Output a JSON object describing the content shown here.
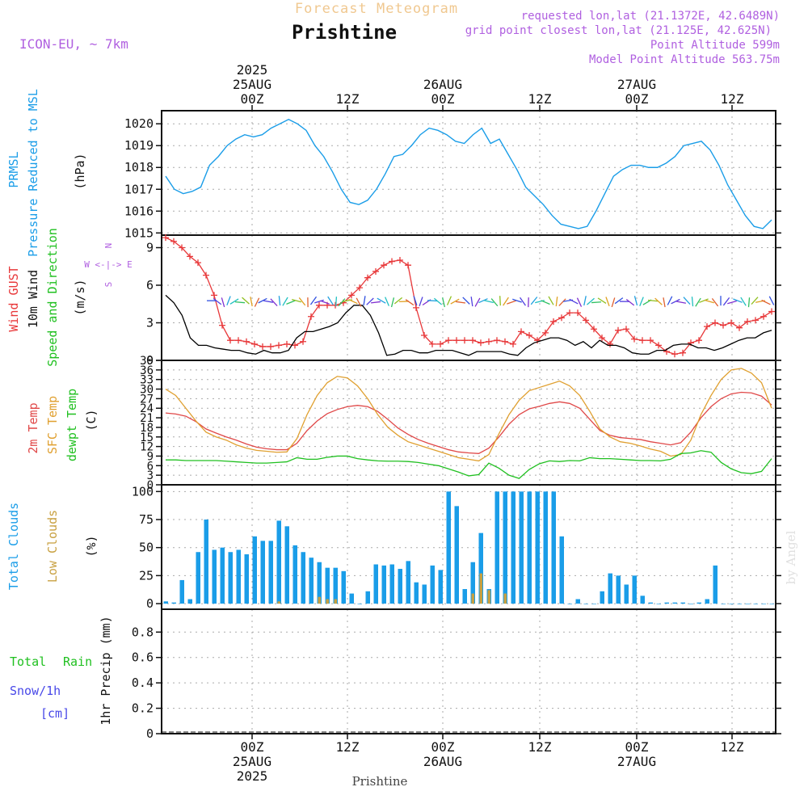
{
  "header": {
    "super_title": "Forecast Meteogram",
    "location": "Prishtine",
    "model": "ICON-EU, ~ 7km",
    "requested": "requested lon,lat (21.1372E, 42.6489N)",
    "grid_point": "grid point closest lon,lat (21.125E, 42.625N)",
    "point_altitude": "Point Altitude 599m",
    "model_altitude": "Model Point Altitude 563.75m",
    "footer_location": "Prishtine",
    "credit": "by Angel"
  },
  "time_axis": {
    "labels_top": [
      {
        "lines": [
          "2025",
          "25AUG",
          "00Z"
        ]
      },
      {
        "lines": [
          "",
          "",
          "12Z"
        ]
      },
      {
        "lines": [
          "",
          "26AUG",
          "00Z"
        ]
      },
      {
        "lines": [
          "",
          "",
          "12Z"
        ]
      },
      {
        "lines": [
          "",
          "27AUG",
          "00Z"
        ]
      },
      {
        "lines": [
          "",
          "",
          "12Z"
        ]
      }
    ],
    "labels_bottom": [
      {
        "lines": [
          "00Z",
          "25AUG",
          "2025"
        ]
      },
      {
        "lines": [
          "12Z",
          "",
          ""
        ]
      },
      {
        "lines": [
          "00Z",
          "26AUG",
          ""
        ]
      },
      {
        "lines": [
          "12Z",
          "",
          ""
        ]
      },
      {
        "lines": [
          "00Z",
          "27AUG",
          ""
        ]
      },
      {
        "lines": [
          "12Z",
          "",
          ""
        ]
      }
    ]
  },
  "panels": {
    "pressure": {
      "labels": [
        "PRMSL",
        "Pressure Reduced to MSL",
        "(hPa)"
      ]
    },
    "wind": {
      "labels": [
        "Wind GUST",
        "10m Wind",
        "Speed and Direction",
        "(m/s)"
      ],
      "compass": [
        "N",
        "W <-|-> E",
        "S"
      ]
    },
    "temp": {
      "labels": [
        "2m Temp",
        "SFC Temp",
        "dewpt Temp",
        "(C)"
      ]
    },
    "clouds": {
      "labels": [
        "Total Clouds",
        "Low Clouds",
        "(%)"
      ]
    },
    "precip": {
      "labels": [
        "Total",
        "Rain",
        "Snow/1h",
        "[cm]",
        "1hr Precip (mm)"
      ]
    }
  },
  "colors": {
    "pressure": "#1a9de8",
    "gust": "#e8383a",
    "wind": "#000000",
    "temp2m": "#e04848",
    "sfc": "#e0a030",
    "dewpt": "#20c020",
    "total_clouds": "#1a9de8",
    "low_clouds": "#c8a040",
    "header_purple": "#b060e0",
    "title_gold": "#f0c890",
    "rain_green": "#20c020",
    "snow_blue": "#4848e8"
  },
  "chart_data": [
    {
      "type": "line",
      "title": "PRMSL Pressure Reduced to MSL",
      "ylabel": "(hPa)",
      "x_unit": "hours from 24AUG 15Z (3 hourly)",
      "ylim": [
        1014.9,
        1020.6
      ],
      "yticks": [
        1015,
        1016,
        1017,
        1018,
        1019,
        1020
      ],
      "series": [
        {
          "name": "PRMSL",
          "values": [
            1017.6,
            1017.0,
            1016.8,
            1016.9,
            1017.1,
            1018.1,
            1018.5,
            1019.0,
            1019.3,
            1019.5,
            1019.4,
            1019.5,
            1019.8,
            1020.0,
            1020.2,
            1020.0,
            1019.7,
            1019.0,
            1018.5,
            1017.8,
            1017.0,
            1016.4,
            1016.3,
            1016.5,
            1017.0,
            1017.7,
            1018.5,
            1018.6,
            1019.0,
            1019.5,
            1019.8,
            1019.7,
            1019.5,
            1019.2,
            1019.1,
            1019.5,
            1019.8,
            1019.1,
            1019.3,
            1018.6,
            1017.9,
            1017.1,
            1016.7,
            1016.3,
            1015.8,
            1015.4,
            1015.3,
            1015.2,
            1015.3,
            1016.0,
            1016.8,
            1017.6,
            1017.9,
            1018.1,
            1018.1,
            1018.0,
            1018.0,
            1018.2,
            1018.5,
            1019.0,
            1019.1,
            1019.2,
            1018.8,
            1018.1,
            1017.2,
            1016.5,
            1015.8,
            1015.3,
            1015.2,
            1015.6
          ]
        }
      ]
    },
    {
      "type": "line",
      "title": "Wind GUST / 10m Wind Speed and Direction",
      "ylabel": "(m/s)",
      "ylim": [
        0,
        10
      ],
      "yticks": [
        0,
        3,
        6,
        9
      ],
      "series": [
        {
          "name": "Wind GUST",
          "values": [
            9.8,
            9.5,
            9.0,
            8.3,
            7.8,
            6.8,
            5.2,
            2.8,
            1.6,
            1.6,
            1.5,
            1.3,
            1.1,
            1.1,
            1.2,
            1.3,
            1.2,
            1.5,
            3.5,
            4.4,
            4.4,
            4.4,
            4.6,
            5.2,
            5.8,
            6.6,
            7.1,
            7.6,
            7.9,
            8.0,
            7.6,
            4.2,
            2.0,
            1.3,
            1.3,
            1.6,
            1.6,
            1.6,
            1.6,
            1.4,
            1.5,
            1.6,
            1.5,
            1.3,
            2.3,
            2.0,
            1.6,
            2.2,
            3.1,
            3.4,
            3.8,
            3.8,
            3.2,
            2.5,
            1.8,
            1.3,
            2.4,
            2.5,
            1.7,
            1.6,
            1.6,
            1.2,
            0.7,
            0.5,
            0.6,
            1.4,
            1.6,
            2.7,
            3.0,
            2.8,
            3.0,
            2.6,
            3.1,
            3.2,
            3.5,
            3.9
          ]
        },
        {
          "name": "10m Wind",
          "values": [
            5.2,
            4.6,
            3.6,
            1.8,
            1.2,
            1.2,
            1.0,
            0.9,
            0.8,
            0.8,
            0.6,
            0.5,
            0.8,
            0.6,
            0.6,
            0.8,
            1.8,
            2.3,
            2.3,
            2.5,
            2.7,
            3.0,
            3.8,
            4.4,
            4.4,
            3.6,
            2.2,
            0.4,
            0.5,
            0.8,
            0.8,
            0.6,
            0.6,
            0.8,
            0.8,
            0.8,
            0.6,
            0.4,
            0.7,
            0.7,
            0.7,
            0.7,
            0.5,
            0.4,
            1.0,
            1.4,
            1.6,
            1.8,
            1.8,
            1.6,
            1.2,
            1.5,
            1.0,
            1.6,
            1.2,
            1.2,
            1.0,
            0.6,
            0.5,
            0.5,
            0.8,
            0.8,
            1.2,
            1.3,
            1.3,
            1.0,
            1.0,
            0.8,
            1.0,
            1.3,
            1.6,
            1.8,
            1.8,
            2.2,
            2.4
          ]
        }
      ]
    },
    {
      "type": "line",
      "title": "2m Temp / SFC Temp / dewpt Temp",
      "ylabel": "(C)",
      "ylim": [
        0,
        39
      ],
      "yticks": [
        0,
        3,
        6,
        9,
        12,
        15,
        18,
        21,
        24,
        27,
        30,
        33,
        36,
        39
      ],
      "series": [
        {
          "name": "2m Temp",
          "values": [
            22.5,
            22.2,
            21.5,
            19.8,
            17.5,
            16.2,
            15.0,
            14.0,
            12.8,
            11.8,
            11.3,
            11.0,
            11.0,
            13.0,
            17.0,
            20.0,
            22.3,
            23.6,
            24.5,
            24.9,
            24.5,
            23.0,
            20.5,
            17.8,
            15.8,
            14.2,
            13.0,
            12.0,
            11.0,
            10.3,
            10.0,
            9.8,
            11.5,
            15.0,
            19.0,
            22.0,
            23.8,
            24.6,
            25.5,
            26.0,
            25.5,
            24.0,
            20.5,
            17.0,
            15.5,
            14.8,
            14.5,
            14.2,
            13.5,
            13.0,
            12.5,
            13.2,
            16.5,
            21.0,
            24.5,
            27.0,
            28.5,
            29.0,
            28.8,
            27.8,
            25.0
          ]
        },
        {
          "name": "SFC Temp",
          "values": [
            30.0,
            28.0,
            24.0,
            20.0,
            16.5,
            15.0,
            14.0,
            12.5,
            11.5,
            10.8,
            10.5,
            10.2,
            10.3,
            14.5,
            22.0,
            28.0,
            32.0,
            34.0,
            33.5,
            31.0,
            27.0,
            22.0,
            18.0,
            15.5,
            13.5,
            12.5,
            11.5,
            10.5,
            9.5,
            8.5,
            8.0,
            7.5,
            9.5,
            16.0,
            22.0,
            26.5,
            29.5,
            30.5,
            31.5,
            32.5,
            31.0,
            28.0,
            23.0,
            17.5,
            15.0,
            13.5,
            13.0,
            12.2,
            11.2,
            10.5,
            9.0,
            9.5,
            14.0,
            22.0,
            28.0,
            33.0,
            36.0,
            36.5,
            35.0,
            32.0,
            24.0
          ]
        },
        {
          "name": "dewpt Temp",
          "values": [
            7.8,
            7.8,
            7.6,
            7.6,
            7.6,
            7.6,
            7.4,
            7.2,
            7.0,
            6.8,
            6.8,
            7.0,
            7.2,
            8.5,
            8.0,
            8.0,
            8.6,
            9.0,
            9.0,
            8.2,
            7.8,
            7.5,
            7.4,
            7.4,
            7.3,
            7.0,
            6.5,
            6.0,
            5.0,
            4.0,
            2.8,
            3.2,
            6.8,
            5.2,
            3.0,
            2.0,
            4.8,
            6.6,
            7.5,
            7.3,
            7.6,
            7.5,
            8.5,
            8.2,
            8.2,
            8.0,
            7.8,
            7.6,
            7.6,
            7.5,
            8.0,
            9.8,
            10.0,
            10.7,
            10.2,
            7.0,
            5.0,
            3.8,
            3.5,
            4.2,
            8.2
          ]
        }
      ]
    },
    {
      "type": "bar",
      "title": "Total Clouds / Low Clouds",
      "ylabel": "(%)",
      "ylim": [
        0,
        100
      ],
      "yticks": [
        0,
        25,
        50,
        75,
        100
      ],
      "series": [
        {
          "name": "Total Clouds",
          "values": [
            2,
            1,
            21,
            4,
            46,
            75,
            48,
            50,
            46,
            48,
            44,
            60,
            56,
            56,
            74,
            69,
            52,
            46,
            41,
            37,
            32,
            32,
            29,
            9,
            0,
            11,
            35,
            34,
            35,
            31,
            38,
            19,
            17,
            34,
            30,
            100,
            87,
            13,
            37,
            63,
            13,
            100,
            100,
            100,
            100,
            100,
            100,
            100,
            100,
            60,
            0,
            4,
            0,
            0,
            11,
            27,
            25,
            17,
            25,
            7,
            1,
            0,
            1,
            1,
            1,
            0,
            1,
            4,
            34,
            0,
            0,
            0,
            0,
            0,
            0,
            0
          ]
        },
        {
          "name": "Low Clouds",
          "values": [
            0,
            0,
            0,
            0,
            0,
            0,
            0,
            0,
            0,
            0,
            0,
            0,
            0,
            0,
            2,
            0,
            0,
            0,
            0,
            6,
            4,
            4,
            0,
            0,
            0,
            0,
            0,
            0,
            0,
            0,
            0,
            0,
            0,
            0,
            0,
            0,
            0,
            0,
            9,
            27,
            12,
            0,
            9,
            0,
            0,
            0,
            0,
            0,
            0,
            0,
            0,
            0,
            0,
            0,
            0,
            0,
            0,
            0,
            0,
            0,
            0,
            0,
            0,
            0,
            0,
            0,
            0,
            0,
            0,
            0,
            0,
            0,
            0,
            0,
            0,
            0
          ]
        }
      ]
    },
    {
      "type": "line",
      "title": "1hr Precip (mm)",
      "ylabel": "1hr Precip (mm)",
      "ylim": [
        0,
        0.9
      ],
      "yticks": [
        0,
        0.2,
        0.4,
        0.6,
        0.8
      ],
      "series": [
        {
          "name": "Total",
          "values": []
        },
        {
          "name": "Rain",
          "values": []
        }
      ]
    }
  ]
}
